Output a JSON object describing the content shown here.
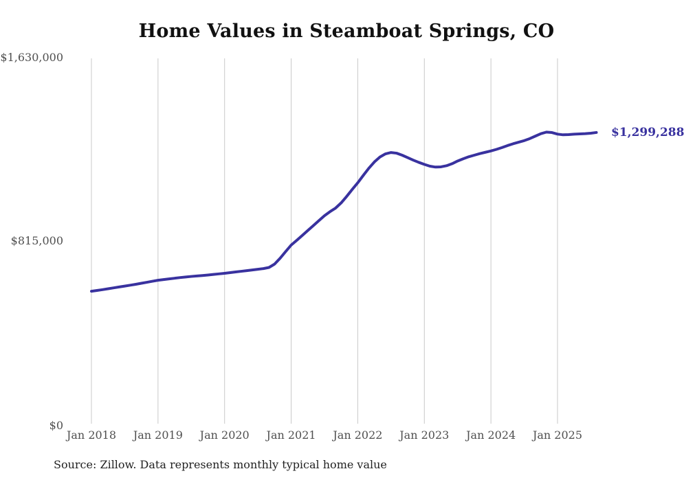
{
  "page": {
    "title": "Home Values in Steamboat Springs, CO",
    "latest_value_label": "$1,299,288",
    "source": "Source: Zillow. Data represents monthly typical home value"
  },
  "chart_data": {
    "type": "line",
    "title": "Home Values in Steamboat Springs, CO",
    "series_name": "Monthly typical home value",
    "legend": "none",
    "grid": "vertical-only",
    "ylim": [
      0,
      1630000
    ],
    "y_ticks": [
      0,
      815000,
      1630000
    ],
    "y_tick_labels": [
      "$0",
      "$815,000",
      "$1,630,000"
    ],
    "x_tick_labels": [
      "Jan 2018",
      "Jan 2019",
      "Jan 2020",
      "Jan 2021",
      "Jan 2022",
      "Jan 2023",
      "Jan 2024",
      "Jan 2025"
    ],
    "end_label": "$1,299,288",
    "line_color": "#39329f",
    "grid_color": "#c9c9c9",
    "tick_label_color": "#4f4f4f",
    "x": [
      "2018-01",
      "2018-02",
      "2018-03",
      "2018-04",
      "2018-05",
      "2018-06",
      "2018-07",
      "2018-08",
      "2018-09",
      "2018-10",
      "2018-11",
      "2018-12",
      "2019-01",
      "2019-02",
      "2019-03",
      "2019-04",
      "2019-05",
      "2019-06",
      "2019-07",
      "2019-08",
      "2019-09",
      "2019-10",
      "2019-11",
      "2019-12",
      "2020-01",
      "2020-02",
      "2020-03",
      "2020-04",
      "2020-05",
      "2020-06",
      "2020-07",
      "2020-08",
      "2020-09",
      "2020-10",
      "2020-11",
      "2020-12",
      "2021-01",
      "2021-02",
      "2021-03",
      "2021-04",
      "2021-05",
      "2021-06",
      "2021-07",
      "2021-08",
      "2021-09",
      "2021-10",
      "2021-11",
      "2021-12",
      "2022-01",
      "2022-02",
      "2022-03",
      "2022-04",
      "2022-05",
      "2022-06",
      "2022-07",
      "2022-08",
      "2022-09",
      "2022-10",
      "2022-11",
      "2022-12",
      "2023-01",
      "2023-02",
      "2023-03",
      "2023-04",
      "2023-05",
      "2023-06",
      "2023-07",
      "2023-08",
      "2023-09",
      "2023-10",
      "2023-11",
      "2023-12",
      "2024-01",
      "2024-02",
      "2024-03",
      "2024-04",
      "2024-05",
      "2024-06",
      "2024-07",
      "2024-08",
      "2024-09",
      "2024-10",
      "2024-11",
      "2024-12",
      "2025-01",
      "2025-02",
      "2025-03",
      "2025-04",
      "2025-05",
      "2025-06",
      "2025-07",
      "2025-08"
    ],
    "values": [
      591000,
      594500,
      598000,
      602000,
      606000,
      610000,
      614000,
      618000,
      622000,
      626500,
      631000,
      635500,
      640000,
      643000,
      646000,
      649000,
      652000,
      654500,
      657000,
      659000,
      661000,
      663500,
      666000,
      668500,
      671000,
      674000,
      677000,
      680000,
      683000,
      686000,
      689000,
      692000,
      697000,
      712000,
      738000,
      768000,
      797000,
      818000,
      840000,
      862000,
      884000,
      906000,
      928000,
      946000,
      962000,
      985000,
      1014000,
      1045000,
      1075000,
      1108000,
      1140000,
      1168000,
      1190000,
      1204000,
      1210000,
      1207000,
      1198000,
      1187000,
      1176000,
      1166000,
      1157000,
      1149000,
      1145000,
      1146000,
      1151000,
      1160000,
      1172000,
      1182000,
      1191000,
      1198000,
      1205000,
      1211000,
      1217000,
      1224000,
      1232000,
      1241000,
      1249000,
      1256000,
      1263000,
      1272000,
      1283000,
      1294000,
      1301000,
      1299000,
      1292000,
      1289000,
      1290000,
      1292000,
      1293000,
      1294000,
      1296000,
      1299288
    ],
    "source": "Source: Zillow. Data represents monthly typical home value"
  }
}
